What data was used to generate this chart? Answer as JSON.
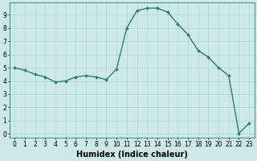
{
  "x": [
    0,
    1,
    2,
    3,
    4,
    5,
    6,
    7,
    8,
    9,
    10,
    11,
    12,
    13,
    14,
    15,
    16,
    17,
    18,
    19,
    20,
    21,
    22,
    23
  ],
  "y": [
    5.0,
    4.8,
    4.5,
    4.3,
    3.9,
    4.0,
    4.3,
    4.4,
    4.3,
    4.1,
    4.9,
    8.0,
    9.3,
    9.5,
    9.5,
    9.2,
    8.3,
    7.5,
    6.3,
    5.8,
    5.0,
    4.4,
    0.05,
    0.8
  ],
  "line_color": "#2e7d6e",
  "marker": "D",
  "markersize": 2.0,
  "linewidth": 1.0,
  "xlabel": "Humidex (Indice chaleur)",
  "xlim": [
    -0.5,
    23.5
  ],
  "ylim": [
    -0.3,
    9.9
  ],
  "yticks": [
    0,
    1,
    2,
    3,
    4,
    5,
    6,
    7,
    8,
    9
  ],
  "xticks": [
    0,
    1,
    2,
    3,
    4,
    5,
    6,
    7,
    8,
    9,
    10,
    11,
    12,
    13,
    14,
    15,
    16,
    17,
    18,
    19,
    20,
    21,
    22,
    23
  ],
  "bg_color": "#cce8e8",
  "grid_color": "#aad4d4",
  "tick_label_fontsize": 5.5,
  "xlabel_fontsize": 7.0,
  "xlabel_fontweight": "bold"
}
